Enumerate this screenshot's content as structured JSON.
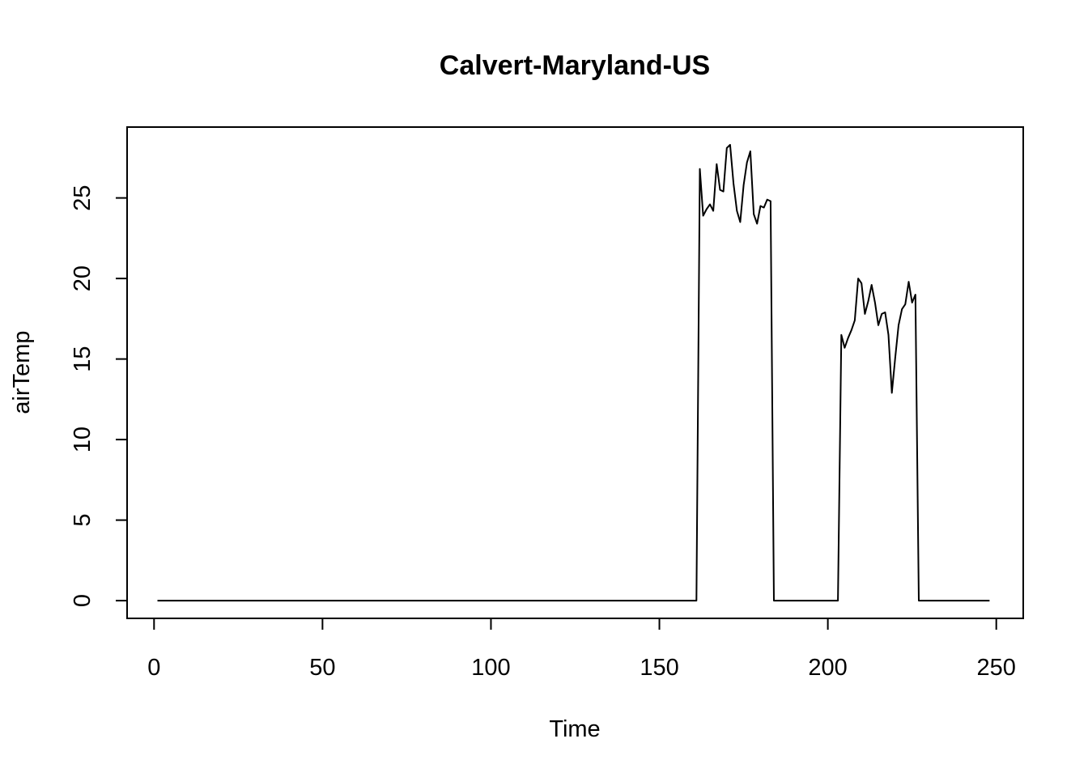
{
  "chart_data": {
    "type": "line",
    "title": "Calvert-Maryland-US",
    "xlabel": "Time",
    "ylabel": "airTemp",
    "xlim": [
      -8,
      258
    ],
    "ylim": [
      -1.1,
      29.4
    ],
    "xticks": [
      0,
      50,
      100,
      150,
      200,
      250
    ],
    "yticks": [
      0,
      5,
      10,
      15,
      20,
      25
    ],
    "xtick_labels": [
      "0",
      "50",
      "100",
      "150",
      "200",
      "250"
    ],
    "ytick_labels": [
      "0",
      "5",
      "10",
      "15",
      "20",
      "25"
    ],
    "grid": false,
    "line_color": "#000000",
    "series": [
      {
        "x": [
          1,
          161,
          162,
          163,
          164,
          165,
          166,
          167,
          168,
          169,
          170,
          171,
          172,
          173,
          174,
          175,
          176,
          177,
          178,
          179,
          180,
          181,
          182,
          183,
          184,
          203,
          204,
          205,
          206,
          207,
          208,
          209,
          210,
          211,
          212,
          213,
          214,
          215,
          216,
          217,
          218,
          219,
          220,
          221,
          222,
          223,
          224,
          225,
          226,
          227,
          228,
          248
        ],
        "y": [
          0,
          0,
          26.8,
          23.9,
          24.3,
          24.6,
          24.2,
          27.1,
          25.5,
          25.4,
          28.1,
          28.3,
          25.9,
          24.2,
          23.5,
          25.8,
          27.2,
          27.9,
          24.0,
          23.4,
          24.5,
          24.4,
          24.9,
          24.8,
          0,
          0,
          16.5,
          15.7,
          16.3,
          16.8,
          17.4,
          20.0,
          19.7,
          17.8,
          18.6,
          19.6,
          18.5,
          17.1,
          17.8,
          17.9,
          16.5,
          12.9,
          15.1,
          17.1,
          18.1,
          18.4,
          19.8,
          18.5,
          19.0,
          0,
          0,
          0
        ]
      }
    ]
  }
}
